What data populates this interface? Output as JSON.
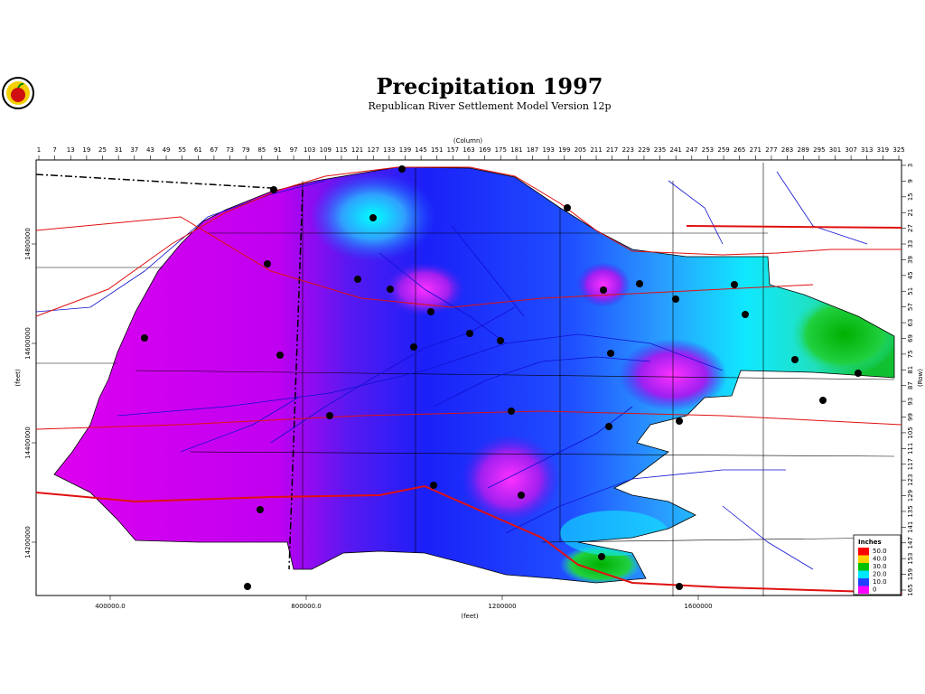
{
  "header": {
    "title": "Precipitation 1997",
    "subtitle": "Republican River Settlement Model Version 12p"
  },
  "column_axis": {
    "label": "(Column)",
    "ticks": [
      1,
      7,
      13,
      19,
      25,
      31,
      37,
      43,
      49,
      55,
      61,
      67,
      73,
      79,
      85,
      91,
      97,
      103,
      109,
      115,
      121,
      127,
      133,
      139,
      145,
      151,
      157,
      163,
      169,
      175,
      181,
      187,
      193,
      199,
      205,
      211,
      217,
      223,
      229,
      235,
      241,
      247,
      253,
      259,
      265,
      271,
      277,
      283,
      289,
      295,
      301,
      307,
      313,
      319,
      325
    ]
  },
  "row_axis": {
    "label": "(Row)",
    "ticks": [
      3,
      9,
      15,
      21,
      27,
      33,
      39,
      45,
      51,
      57,
      63,
      69,
      75,
      81,
      87,
      93,
      99,
      105,
      111,
      117,
      123,
      129,
      135,
      141,
      147,
      153,
      159,
      165
    ]
  },
  "x_axis": {
    "label": "(feet)",
    "ticks": [
      {
        "value": 400000,
        "label": "400000.0"
      },
      {
        "value": 800000,
        "label": "800000.0"
      },
      1200000,
      1600000
    ]
  },
  "y_axis": {
    "label": "(feet)",
    "ticks": [
      14200000,
      14400000,
      14600000,
      14800000
    ]
  },
  "legend": {
    "title": "Inches",
    "items": [
      {
        "label": "50.0",
        "color": "#ff0000"
      },
      {
        "label": "40.0",
        "color": "#ffd000"
      },
      {
        "label": "30.0",
        "color": "#00c000"
      },
      {
        "label": "20.0",
        "color": "#00e8ff"
      },
      {
        "label": "10.0",
        "color": "#2040ff"
      },
      {
        "label": "0",
        "color": "#ff00ff"
      }
    ]
  }
}
